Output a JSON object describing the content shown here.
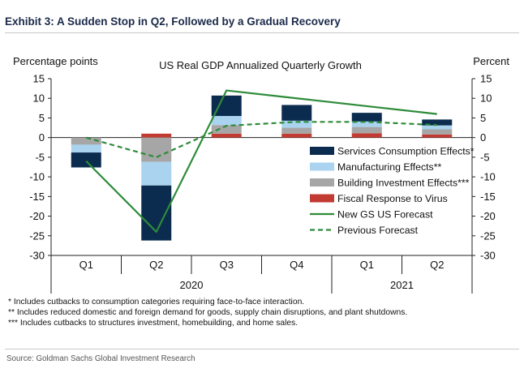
{
  "exhibit_title": "Exhibit 3: A Sudden Stop in Q2, Followed by a Gradual Recovery",
  "colors": {
    "services": "#0b2c4f",
    "manufacturing": "#a9d3ef",
    "building": "#a6a6a6",
    "fiscal": "#c23b33",
    "new_forecast": "#2e8b3a",
    "previous_forecast": "#2e8b3a"
  },
  "chart_data": {
    "type": "bar",
    "title": "US Real GDP Annualized Quarterly Growth",
    "ylabel_left": "Percentage points",
    "ylabel_right": "Percent",
    "ylim": [
      -30,
      15
    ],
    "yticks": [
      15,
      10,
      5,
      0,
      -5,
      -10,
      -15,
      -20,
      -25,
      -30
    ],
    "grid": false,
    "legend_position": "right",
    "categories": [
      "Q1",
      "Q2",
      "Q3",
      "Q4",
      "Q1",
      "Q2"
    ],
    "year_groups": [
      {
        "label": "2020",
        "span": 4
      },
      {
        "label": "2021",
        "span": 2
      }
    ],
    "series": [
      {
        "name": "Services Consumption Effects*",
        "key": "services",
        "kind": "bar",
        "values": [
          -3.8,
          -14.0,
          5.2,
          4.0,
          2.2,
          1.5
        ]
      },
      {
        "name": "Manufacturing Effects**",
        "key": "manufacturing",
        "kind": "bar",
        "values": [
          -2.0,
          -6.0,
          2.3,
          1.8,
          1.4,
          1.0
        ]
      },
      {
        "name": "Building Investment Effects***",
        "key": "building",
        "kind": "bar",
        "values": [
          -1.8,
          -6.2,
          2.2,
          1.5,
          1.6,
          1.3
        ]
      },
      {
        "name": "Fiscal Response to Virus",
        "key": "fiscal",
        "kind": "bar",
        "values": [
          0.0,
          1.0,
          1.0,
          1.0,
          1.1,
          0.8
        ]
      },
      {
        "name": "New GS US Forecast",
        "key": "new_forecast",
        "kind": "line",
        "values": [
          -6.0,
          -24.0,
          12.0,
          10.0,
          8.0,
          6.0
        ]
      },
      {
        "name": "Previous Forecast",
        "key": "previous_forecast",
        "kind": "dashed-line",
        "values": [
          0.0,
          -5.0,
          3.0,
          4.0,
          4.0,
          3.2
        ]
      }
    ]
  },
  "footnotes": [
    "* Includes cutbacks to consumption categories requiring face-to-face interaction.",
    "** Includes reduced domestic and foreign demand for goods, supply chain disruptions, and plant shutdowns.",
    "*** Includes cutbacks to structures investment, homebuilding, and home sales."
  ],
  "source": "Source: Goldman Sachs Global Investment Research"
}
